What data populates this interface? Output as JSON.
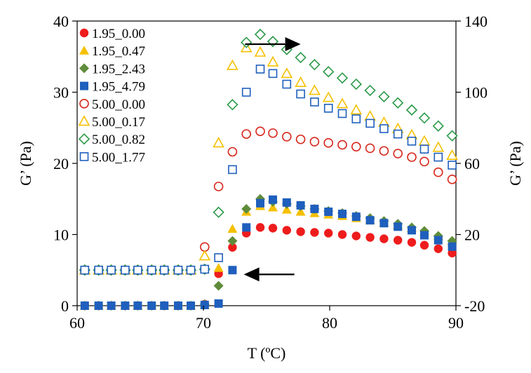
{
  "chart_data": {
    "type": "scatter",
    "xlabel": "T (ºC)",
    "ylabel_left": "G’ (Pa)",
    "ylabel_right": "G’ (Pa)",
    "xlim": [
      60,
      90
    ],
    "ylim_left": [
      0,
      40
    ],
    "ylim_right": [
      -20,
      140
    ],
    "xticks": [
      "60",
      "70",
      "80",
      "90"
    ],
    "yticks_left": [
      "0",
      "10",
      "20",
      "30",
      "40"
    ],
    "yticks_right": [
      "-20",
      "20",
      "60",
      "100",
      "140"
    ],
    "grid": false,
    "legend_position": "top-left",
    "arrows": [
      {
        "direction": "right",
        "axis": "right",
        "x_from": 73.3,
        "x_to": 77.7,
        "y": 127
      },
      {
        "direction": "left",
        "axis": "left",
        "x_from": 77.2,
        "x_to": 73.2,
        "y": 4.4
      }
    ],
    "series": [
      {
        "name": "1.95_0.00",
        "axis": "left",
        "marker": "circle",
        "filled": true,
        "color": "#ee1c1c",
        "x": [
          60.6,
          61.7,
          62.7,
          63.8,
          64.8,
          65.9,
          66.9,
          68.0,
          69.0,
          70.1,
          71.2,
          72.3,
          73.4,
          74.5,
          75.5,
          76.6,
          77.7,
          78.8,
          79.9,
          81.0,
          82.1,
          83.2,
          84.3,
          85.4,
          86.5,
          87.5,
          88.6,
          89.7
        ],
        "y": [
          0,
          0,
          0,
          0,
          0,
          0,
          0,
          0,
          0,
          0.2,
          4.5,
          8.2,
          10.2,
          11.0,
          10.9,
          10.6,
          10.4,
          10.3,
          10.2,
          10.0,
          9.8,
          9.6,
          9.4,
          9.2,
          8.9,
          8.5,
          8.0,
          7.4
        ]
      },
      {
        "name": "1.95_0.47",
        "axis": "left",
        "marker": "triangle",
        "filled": true,
        "color": "#f5c000",
        "x": [
          60.6,
          61.7,
          62.7,
          63.8,
          64.8,
          65.9,
          66.9,
          68.0,
          69.0,
          70.1,
          71.2,
          72.3,
          73.4,
          74.5,
          75.5,
          76.6,
          77.7,
          78.8,
          79.9,
          81.0,
          82.1,
          83.2,
          84.3,
          85.4,
          86.5,
          87.5,
          88.6,
          89.7
        ],
        "y": [
          0,
          0,
          0,
          0,
          0,
          0,
          0,
          0,
          0,
          0.1,
          5.3,
          10.8,
          13.2,
          14.0,
          13.8,
          13.5,
          13.2,
          13.0,
          12.8,
          12.6,
          12.3,
          12.0,
          11.7,
          11.3,
          10.9,
          10.4,
          9.8,
          9.1
        ]
      },
      {
        "name": "1.95_2.43",
        "axis": "left",
        "marker": "diamond",
        "filled": true,
        "color": "#5f8c3a",
        "x": [
          60.6,
          61.7,
          62.7,
          63.8,
          64.8,
          65.9,
          66.9,
          68.0,
          69.0,
          70.1,
          71.2,
          72.3,
          73.4,
          74.5,
          75.5,
          76.6,
          77.7,
          78.8,
          79.9,
          81.0,
          82.1,
          83.2,
          84.3,
          85.4,
          86.5,
          87.5,
          88.6,
          89.7
        ],
        "y": [
          0,
          0,
          0,
          0,
          0,
          0,
          0,
          0,
          0,
          0.2,
          2.8,
          9.1,
          13.6,
          15.0,
          14.6,
          14.3,
          14.0,
          13.6,
          13.3,
          13.0,
          12.6,
          12.3,
          11.9,
          11.5,
          11.0,
          10.5,
          9.8,
          9.1
        ]
      },
      {
        "name": "1.95_4.79",
        "axis": "left",
        "marker": "square",
        "filled": true,
        "color": "#1f5fbd",
        "x": [
          60.6,
          61.7,
          62.7,
          63.8,
          64.8,
          65.9,
          66.9,
          68.0,
          69.0,
          70.1,
          71.2,
          72.3,
          73.4,
          74.5,
          75.5,
          76.6,
          77.7,
          78.8,
          79.9,
          81.0,
          82.1,
          83.2,
          84.3,
          85.4,
          86.5,
          87.5,
          88.6,
          89.7
        ],
        "y": [
          0,
          0,
          0,
          0,
          0,
          0,
          0,
          0,
          0,
          0.1,
          0.3,
          5.0,
          11.0,
          14.4,
          14.9,
          14.5,
          14.1,
          13.6,
          13.2,
          12.9,
          12.5,
          12.0,
          11.6,
          11.1,
          10.6,
          9.9,
          9.2,
          8.3
        ]
      },
      {
        "name": "5.00_0.00",
        "axis": "right",
        "marker": "circle",
        "filled": false,
        "color": "#d8291d",
        "x": [
          60.6,
          61.7,
          62.7,
          63.8,
          64.8,
          65.9,
          66.9,
          68.0,
          69.0,
          70.1,
          71.2,
          72.3,
          73.4,
          74.5,
          75.5,
          76.6,
          77.7,
          78.8,
          79.9,
          81.0,
          82.1,
          83.2,
          84.3,
          85.4,
          86.5,
          87.5,
          88.6,
          89.7
        ],
        "y": [
          0,
          0,
          0,
          0,
          0,
          0,
          0,
          0,
          0,
          13.0,
          47.0,
          66.5,
          76.5,
          78.0,
          77.0,
          75.0,
          73.5,
          72.2,
          71.5,
          70.4,
          69.4,
          68.5,
          67.0,
          65.5,
          63.5,
          61.0,
          55.0,
          51.0
        ]
      },
      {
        "name": "5.00_0.17",
        "axis": "right",
        "marker": "triangle",
        "filled": false,
        "color": "#f5c000",
        "x": [
          60.6,
          61.7,
          62.7,
          63.8,
          64.8,
          65.9,
          66.9,
          68.0,
          69.0,
          70.1,
          71.2,
          72.3,
          73.4,
          74.5,
          75.5,
          76.6,
          77.7,
          78.8,
          79.9,
          81.0,
          82.1,
          83.2,
          84.3,
          85.4,
          86.5,
          87.5,
          88.6,
          89.7
        ],
        "y": [
          0,
          0,
          0,
          0,
          0,
          0,
          0,
          0,
          0,
          8.0,
          71.5,
          115.0,
          125.0,
          122.5,
          117.0,
          110.5,
          105.5,
          101.0,
          97.0,
          93.5,
          90.0,
          86.5,
          83.0,
          79.5,
          76.0,
          72.5,
          69.0,
          64.5
        ]
      },
      {
        "name": "5.00_0.82",
        "axis": "right",
        "marker": "diamond",
        "filled": false,
        "color": "#2a9a48",
        "x": [
          60.6,
          61.7,
          62.7,
          63.8,
          64.8,
          65.9,
          66.9,
          68.0,
          69.0,
          70.1,
          71.2,
          72.3,
          73.4,
          74.5,
          75.5,
          76.6,
          77.7,
          78.8,
          79.9,
          81.0,
          82.1,
          83.2,
          84.3,
          85.4,
          86.5,
          87.5,
          88.6,
          89.7
        ],
        "y": [
          0,
          0,
          0,
          0,
          0,
          0,
          0,
          0,
          0,
          0.5,
          32.5,
          93.0,
          128.0,
          132.5,
          128.5,
          124.0,
          119.5,
          115.5,
          111.5,
          108.0,
          104.5,
          101.0,
          97.5,
          94.0,
          90.0,
          85.5,
          81.0,
          75.5
        ]
      },
      {
        "name": "5.00_1.77",
        "axis": "right",
        "marker": "square",
        "filled": false,
        "color": "#1f5fbd",
        "x": [
          60.6,
          61.7,
          62.7,
          63.8,
          64.8,
          65.9,
          66.9,
          68.0,
          69.0,
          70.1,
          71.2,
          72.3,
          73.4,
          74.5,
          75.5,
          76.6,
          77.7,
          78.8,
          79.9,
          81.0,
          82.1,
          83.2,
          84.3,
          85.4,
          86.5,
          87.5,
          88.6,
          89.7
        ],
        "y": [
          0,
          0,
          0,
          0,
          0,
          0,
          0,
          0,
          0,
          0.5,
          7.0,
          56.5,
          100.0,
          113.0,
          110.5,
          104.5,
          99.0,
          94.5,
          91.0,
          88.0,
          85.0,
          82.5,
          79.5,
          76.5,
          72.5,
          68.0,
          63.5,
          59.0
        ]
      }
    ]
  }
}
